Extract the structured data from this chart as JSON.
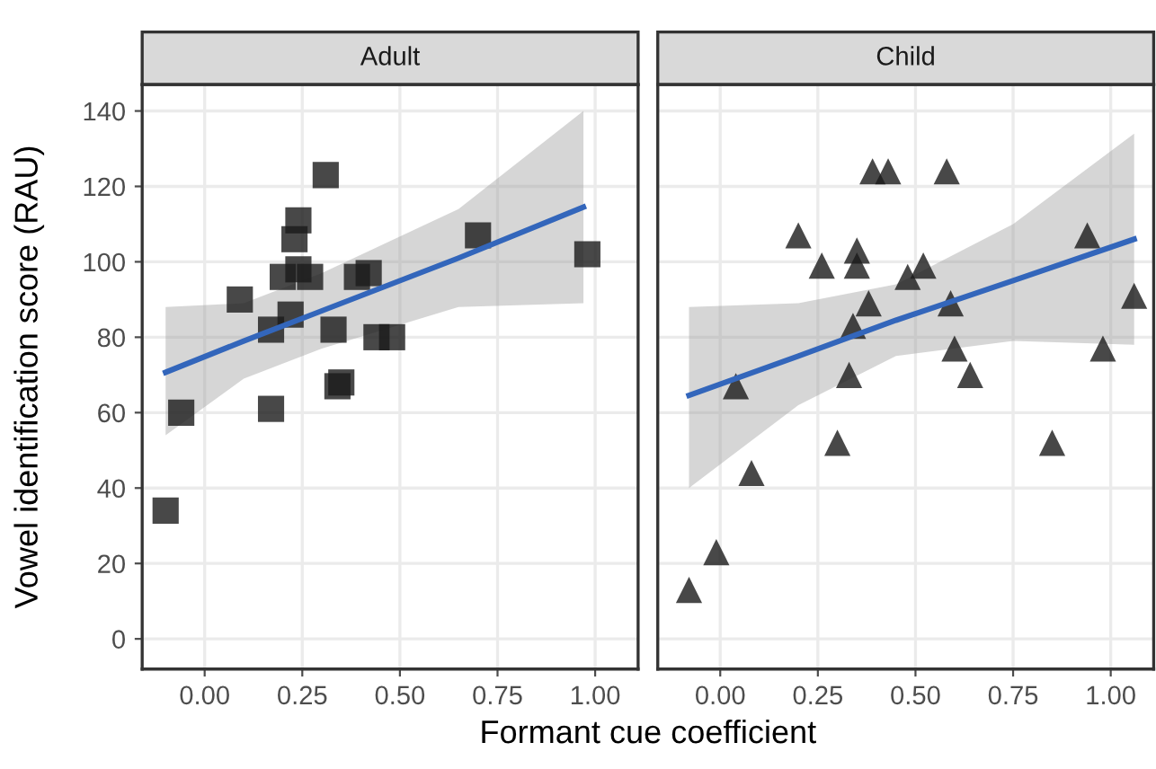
{
  "chart_data": [
    {
      "type": "scatter",
      "title": "Adult",
      "xlabel": "Formant cue coefficient",
      "ylabel": "Vowel identification score (RAU)",
      "grid": true,
      "legend": false,
      "xlim": [
        -0.16,
        1.11
      ],
      "ylim": [
        -8,
        147
      ],
      "xticks": [
        {
          "value": 0,
          "label": "0.00"
        },
        {
          "value": 0.25,
          "label": "0.25"
        },
        {
          "value": 0.5,
          "label": "0.50"
        },
        {
          "value": 0.75,
          "label": "0.75"
        },
        {
          "value": 1,
          "label": "1.00"
        }
      ],
      "yticks": [
        0,
        20,
        40,
        60,
        80,
        100,
        120,
        140
      ],
      "series": [
        {
          "marker": "square",
          "color": "#1a1a1a",
          "x": [
            -0.1,
            -0.06,
            0.09,
            0.17,
            0.17,
            0.2,
            0.22,
            0.24,
            0.23,
            0.24,
            0.27,
            0.31,
            0.33,
            0.34,
            0.35,
            0.39,
            0.42,
            0.44,
            0.48,
            0.7,
            0.98
          ],
          "values": [
            34,
            60,
            90,
            82,
            61,
            96,
            86,
            111,
            106,
            98,
            96,
            123,
            82,
            67,
            68,
            96,
            97,
            80,
            80,
            107,
            102
          ]
        },
        {
          "type": "line",
          "color": "#3366bb",
          "x": [
            -0.1,
            0.1,
            0.3,
            0.65,
            0.97
          ],
          "values": [
            70.7,
            79,
            87,
            101,
            114.5
          ],
          "lower": [
            54,
            69,
            77,
            88,
            89
          ],
          "upper": [
            88,
            89,
            97,
            114,
            140
          ]
        }
      ]
    },
    {
      "type": "scatter",
      "title": "Child",
      "grid": true,
      "legend": false,
      "tick_labels": "x",
      "xlim": [
        -0.16,
        1.11
      ],
      "ylim": [
        -8,
        147
      ],
      "xticks": [
        {
          "value": 0,
          "label": "0.00"
        },
        {
          "value": 0.25,
          "label": "0.25"
        },
        {
          "value": 0.5,
          "label": "0.50"
        },
        {
          "value": 0.75,
          "label": "0.75"
        },
        {
          "value": 1,
          "label": "1.00"
        }
      ],
      "yticks": [
        0,
        20,
        40,
        60,
        80,
        100,
        120,
        140
      ],
      "series": [
        {
          "marker": "triangle",
          "color": "#1a1a1a",
          "x": [
            -0.08,
            -0.01,
            0.04,
            0.08,
            0.2,
            0.26,
            0.3,
            0.33,
            0.34,
            0.35,
            0.35,
            0.38,
            0.39,
            0.43,
            0.48,
            0.52,
            0.58,
            0.59,
            0.6,
            0.64,
            0.85,
            0.94,
            0.98,
            1.06
          ],
          "values": [
            13,
            23,
            67,
            44,
            107,
            99,
            52,
            70,
            83,
            99,
            103,
            89,
            124,
            124,
            96,
            99,
            124,
            89,
            77,
            70,
            52,
            107,
            77,
            91
          ]
        },
        {
          "type": "line",
          "color": "#3366bb",
          "x": [
            -0.08,
            0.2,
            0.45,
            0.75,
            1.06
          ],
          "values": [
            64.6,
            75,
            84.5,
            95,
            106
          ],
          "lower": [
            40,
            62,
            75,
            79,
            78
          ],
          "upper": [
            88,
            89,
            94,
            110,
            134
          ]
        }
      ]
    }
  ]
}
